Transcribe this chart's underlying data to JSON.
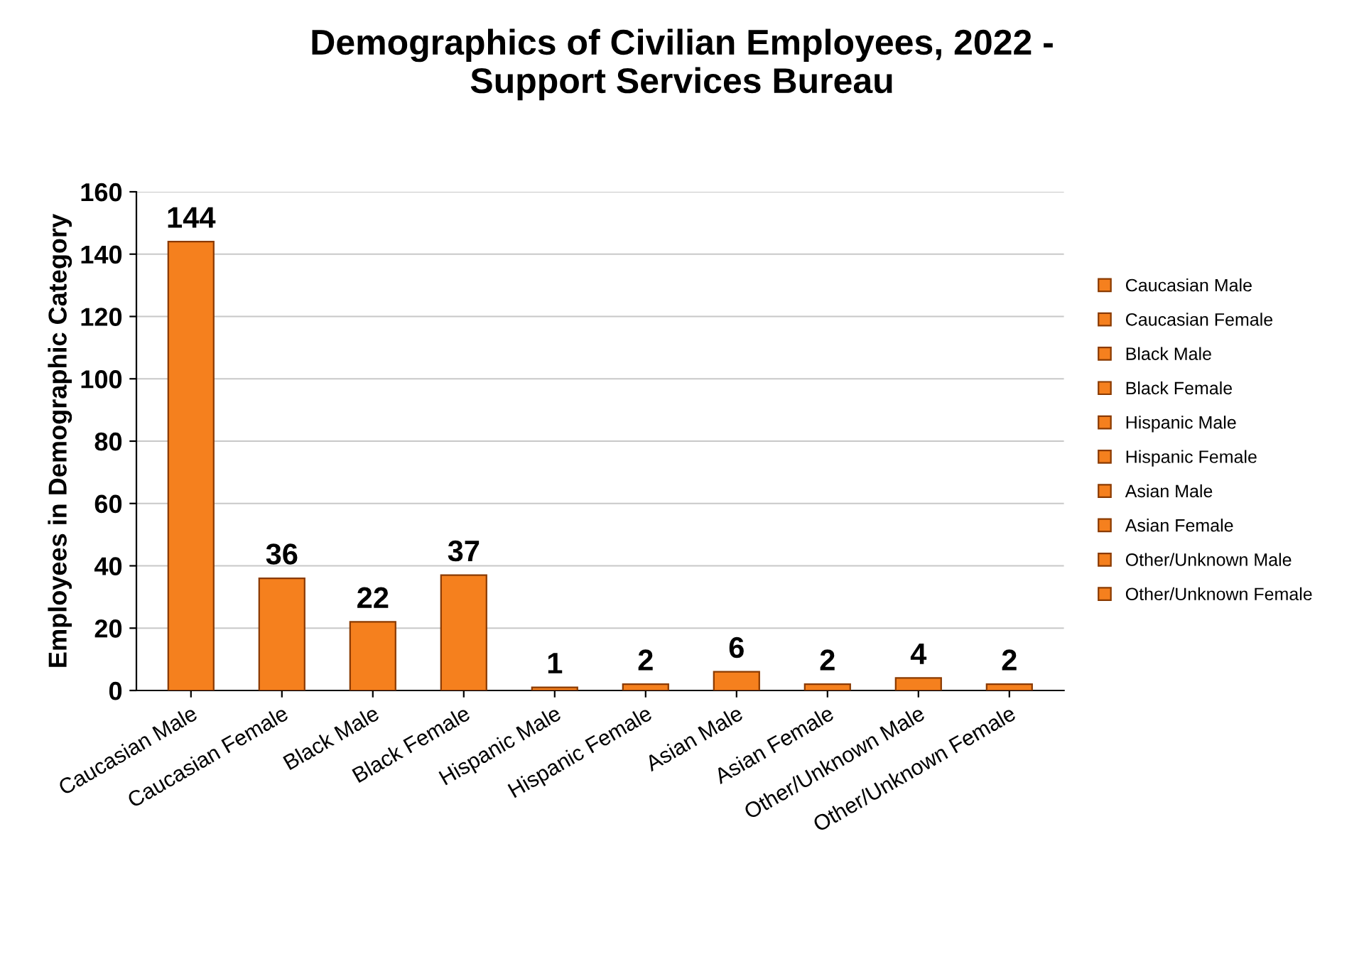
{
  "chart_data": {
    "type": "bar",
    "title": "Demographics of Civilian Employees, 2022 -\nSupport Services Bureau",
    "ylabel": "Employees in Demographic Category",
    "categories": [
      "Caucasian Male",
      "Caucasian Female",
      "Black Male",
      "Black Female",
      "Hispanic Male",
      "Hispanic Female",
      "Asian Male",
      "Asian Female",
      "Other/Unknown Male",
      "Other/Unknown Female"
    ],
    "series": [
      {
        "name": "Caucasian Male",
        "color": "#f5801e",
        "values": [
          144,
          null,
          null,
          null,
          null,
          null,
          null,
          null,
          null,
          null
        ]
      },
      {
        "name": "Caucasian Female",
        "color": "#f5801e",
        "values": [
          null,
          36,
          null,
          null,
          null,
          null,
          null,
          null,
          null,
          null
        ]
      },
      {
        "name": "Black Male",
        "color": "#f5801e",
        "values": [
          null,
          null,
          22,
          null,
          null,
          null,
          null,
          null,
          null,
          null
        ]
      },
      {
        "name": "Black Female",
        "color": "#f5801e",
        "values": [
          null,
          null,
          null,
          37,
          null,
          null,
          null,
          null,
          null,
          null
        ]
      },
      {
        "name": "Hispanic Male",
        "color": "#f5801e",
        "values": [
          null,
          null,
          null,
          null,
          1,
          null,
          null,
          null,
          null,
          null
        ]
      },
      {
        "name": "Hispanic Female",
        "color": "#f5801e",
        "values": [
          null,
          null,
          null,
          null,
          null,
          2,
          null,
          null,
          null,
          null
        ]
      },
      {
        "name": "Asian Male",
        "color": "#f5801e",
        "values": [
          null,
          null,
          null,
          null,
          null,
          null,
          6,
          null,
          null,
          null
        ]
      },
      {
        "name": "Asian Female",
        "color": "#f5801e",
        "values": [
          null,
          null,
          null,
          null,
          null,
          null,
          null,
          2,
          null,
          null
        ]
      },
      {
        "name": "Other/Unknown Male",
        "color": "#f5801e",
        "values": [
          null,
          null,
          null,
          null,
          null,
          null,
          null,
          null,
          4,
          null
        ]
      },
      {
        "name": "Other/Unknown Female",
        "color": "#f5801e",
        "values": [
          null,
          null,
          null,
          null,
          null,
          null,
          null,
          null,
          null,
          2
        ]
      }
    ],
    "ylim": [
      0,
      160
    ],
    "yticks": [
      0,
      20,
      40,
      60,
      80,
      100,
      120,
      140,
      160
    ],
    "grid": "y",
    "legend": "right",
    "data_labels": true
  }
}
